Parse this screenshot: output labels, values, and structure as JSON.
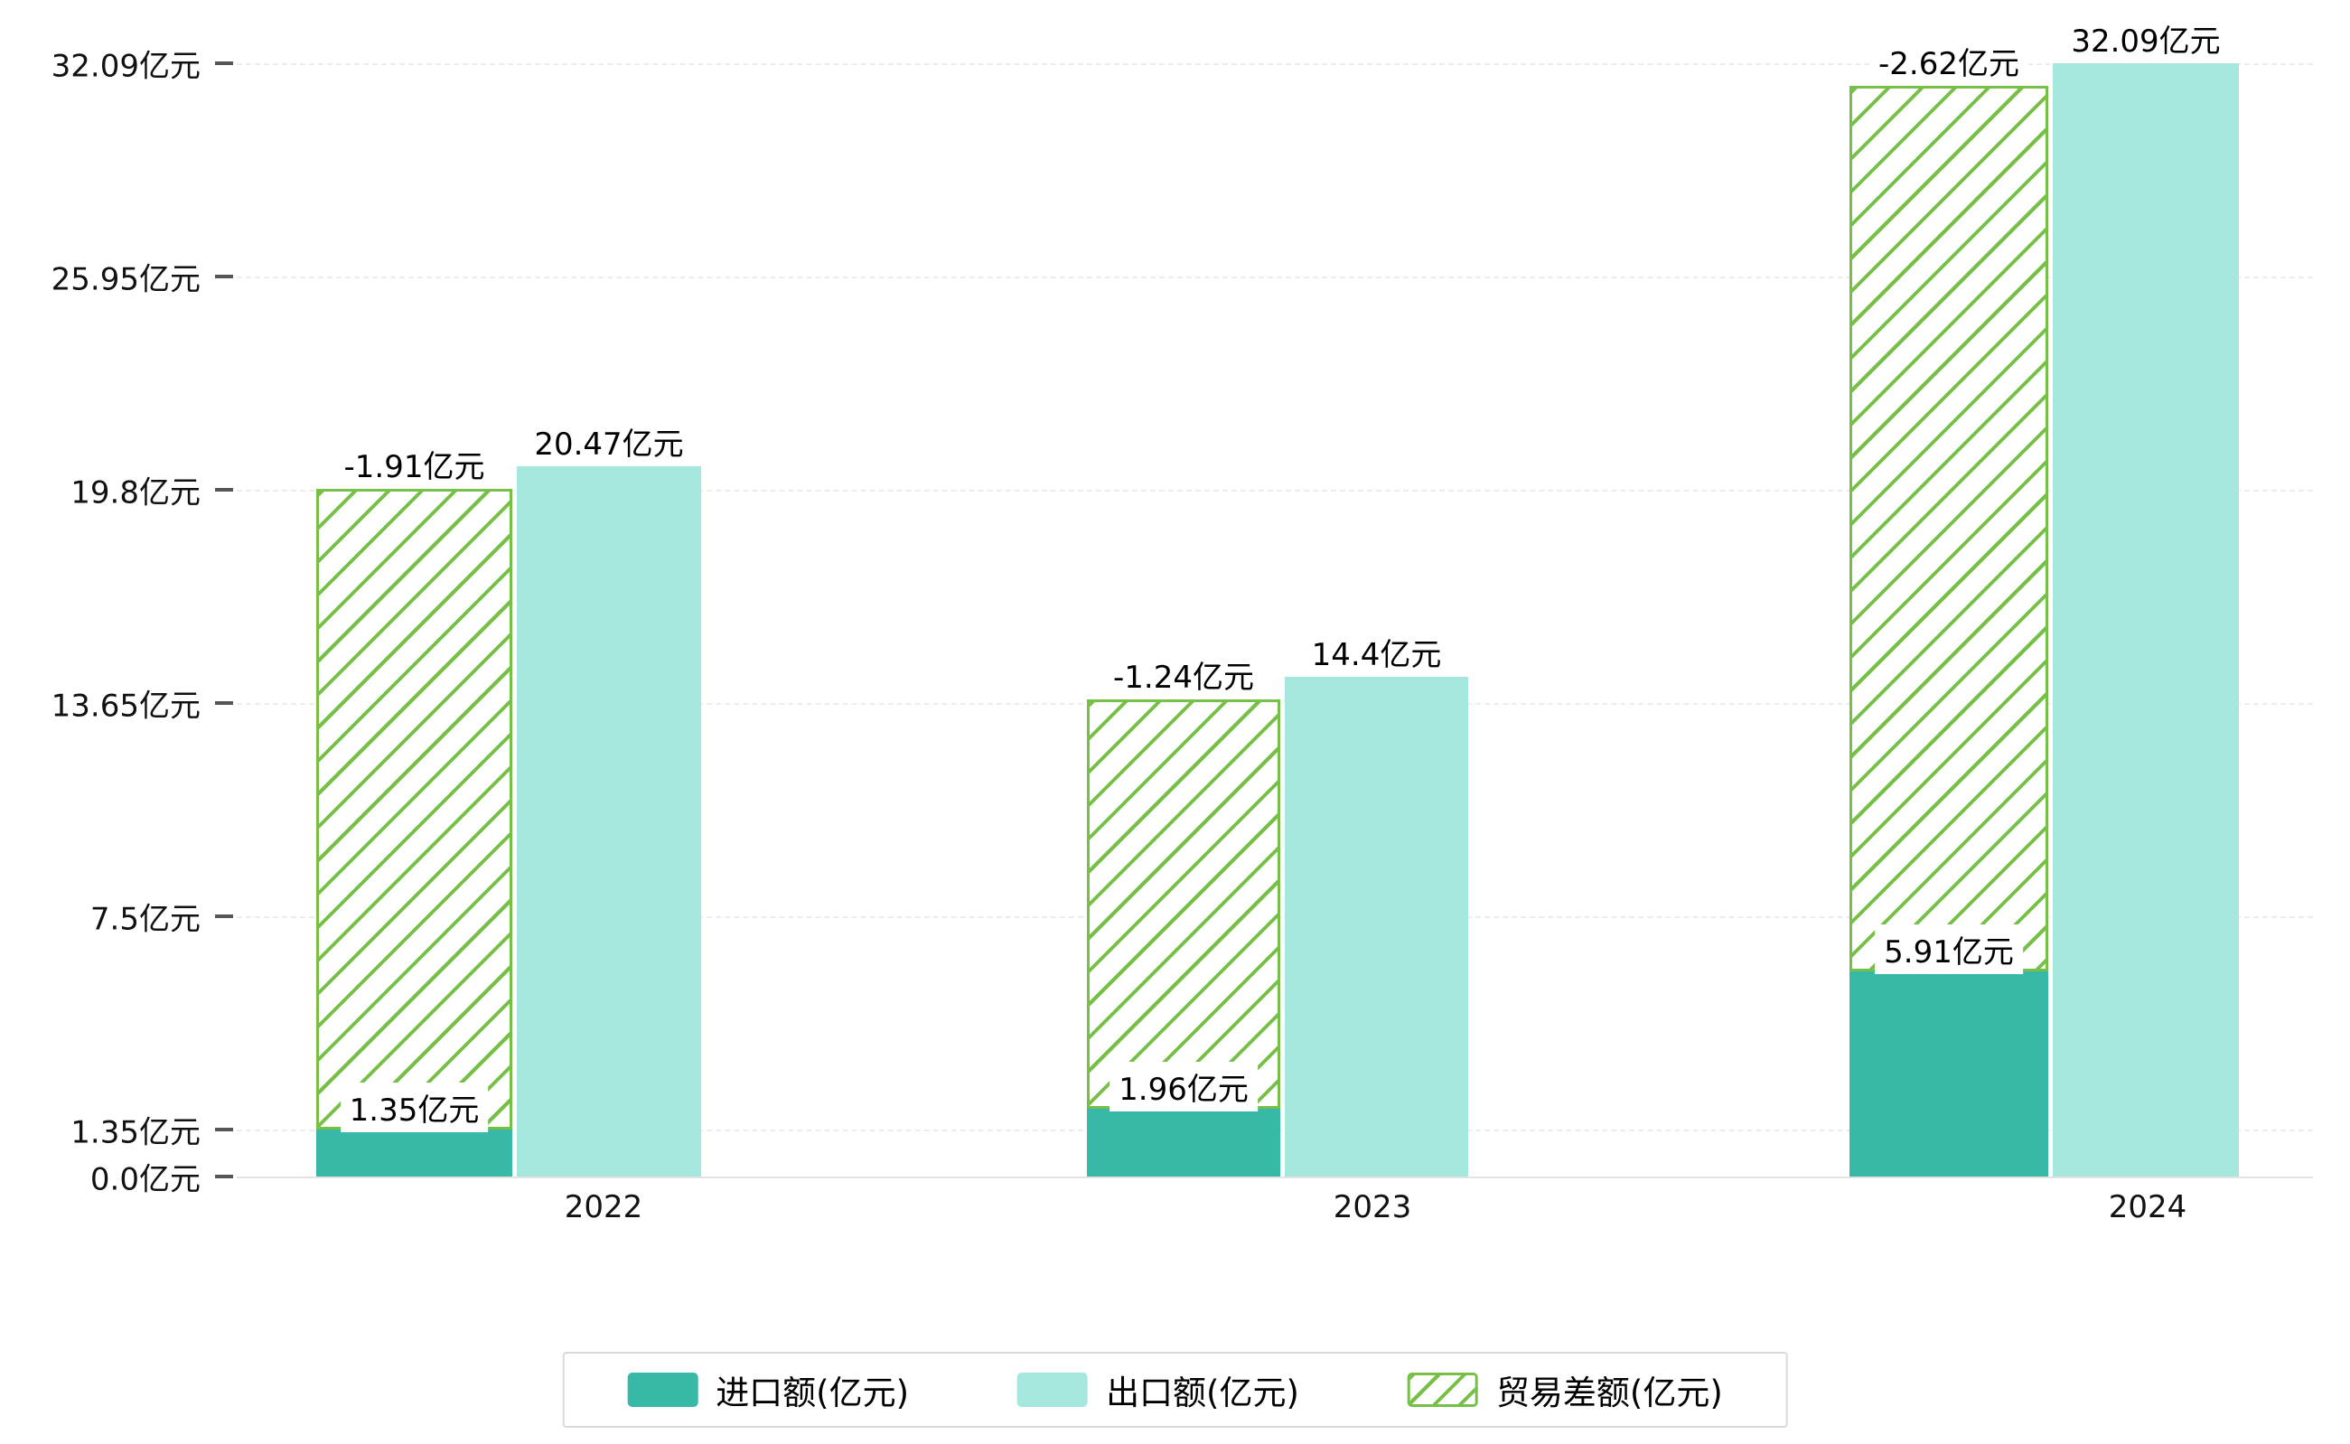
{
  "chart_data": {
    "type": "bar",
    "title": "",
    "unit": "亿元",
    "categories": [
      "2022",
      "2023",
      "2024"
    ],
    "series": [
      {
        "name": "进口额(亿元)",
        "values": [
          1.35,
          1.96,
          5.91
        ],
        "labels": [
          "1.35亿元",
          "1.96亿元",
          "5.91亿元"
        ],
        "style": "solid"
      },
      {
        "name": "出口额(亿元)",
        "values": [
          20.47,
          14.4,
          32.09
        ],
        "labels": [
          "20.47亿元",
          "14.4亿元",
          "32.09亿元"
        ],
        "style": "solid"
      },
      {
        "name": "贸易差额(亿元)",
        "values": [
          -1.91,
          -1.24,
          -2.62
        ],
        "labels": [
          "-1.91亿元",
          "-1.24亿元",
          "-2.62亿元"
        ],
        "style": "hatched",
        "render_note": "hatched segment stacked on top of import bar, reaching the export level"
      }
    ],
    "y_ticks": {
      "values": [
        0,
        1.35,
        7.5,
        13.65,
        19.8,
        25.95,
        32.09
      ],
      "labels": [
        "0.0亿元",
        "1.35亿元",
        "7.5亿元",
        "13.65亿元",
        "19.8亿元",
        "25.95亿元",
        "32.09亿元"
      ]
    },
    "ylim": [
      0,
      32.09
    ],
    "xlabel": "",
    "ylabel": "",
    "grid": "dashed horizontal gridlines",
    "legend_position": "bottom-center"
  },
  "legend": {
    "items": [
      {
        "label": "进口额(亿元)",
        "swatch": "import"
      },
      {
        "label": "出口额(亿元)",
        "swatch": "export"
      },
      {
        "label": "贸易差额(亿元)",
        "swatch": "balance"
      }
    ]
  },
  "colors": {
    "import": "#38b9a7",
    "export": "#a5e7dc",
    "balance": "#76c047",
    "grid": "#ececec",
    "text": "#111111",
    "legend_border": "#d9d9d9"
  }
}
